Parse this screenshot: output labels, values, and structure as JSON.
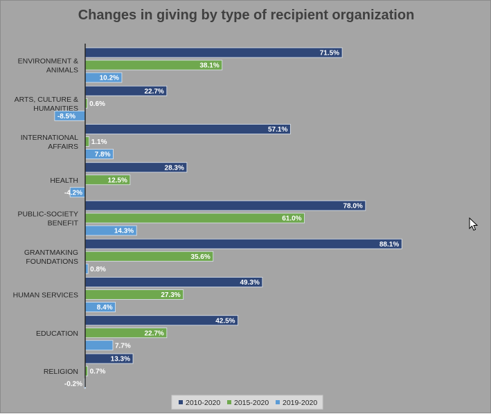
{
  "chart_data": {
    "type": "bar",
    "orientation": "horizontal",
    "title": "Changes in giving by type of recipient organization",
    "categories": [
      [
        "ENVIRONMENT &",
        "ANIMALS"
      ],
      [
        "ARTS, CULTURE &",
        "HUMANITIES"
      ],
      [
        "INTERNATIONAL",
        "AFFAIRS"
      ],
      [
        "HEALTH"
      ],
      [
        "PUBLIC-SOCIETY",
        "BENEFIT"
      ],
      [
        "GRANTMAKING",
        "FOUNDATIONS"
      ],
      [
        "HUMAN SERVICES"
      ],
      [
        "EDUCATION"
      ],
      [
        "RELIGION"
      ]
    ],
    "series": [
      {
        "name": "2010-2020",
        "color": "#2f4778",
        "values": [
          71.5,
          22.7,
          57.1,
          28.3,
          78.0,
          88.1,
          49.3,
          42.5,
          13.3
        ],
        "labels": [
          "71.5%",
          "22.7%",
          "57.1%",
          "28.3%",
          "78.0%",
          "88.1%",
          "49.3%",
          "42.5%",
          "13.3%"
        ]
      },
      {
        "name": "2015-2020",
        "color": "#6fa84e",
        "values": [
          38.1,
          0.6,
          1.1,
          12.5,
          61.0,
          35.6,
          27.3,
          22.7,
          0.7
        ],
        "labels": [
          "38.1%",
          "0.6%",
          "1.1%",
          "12.5%",
          "61.0%",
          "35.6%",
          "27.3%",
          "22.7%",
          "0.7%"
        ]
      },
      {
        "name": "2019-2020",
        "color": "#5b9bd5",
        "values": [
          10.2,
          -8.5,
          7.8,
          -4.2,
          14.3,
          0.8,
          8.4,
          7.7,
          -0.2
        ],
        "labels": [
          "10.2%",
          "-8.5%",
          "7.8%",
          "-4.2%",
          "14.3%",
          "0.8%",
          "8.4%",
          "7.7%",
          "-0.2%"
        ]
      }
    ],
    "xlim": [
      -9,
      92
    ],
    "grid": false,
    "legend_position": "bottom",
    "xlabel": "",
    "ylabel": ""
  }
}
